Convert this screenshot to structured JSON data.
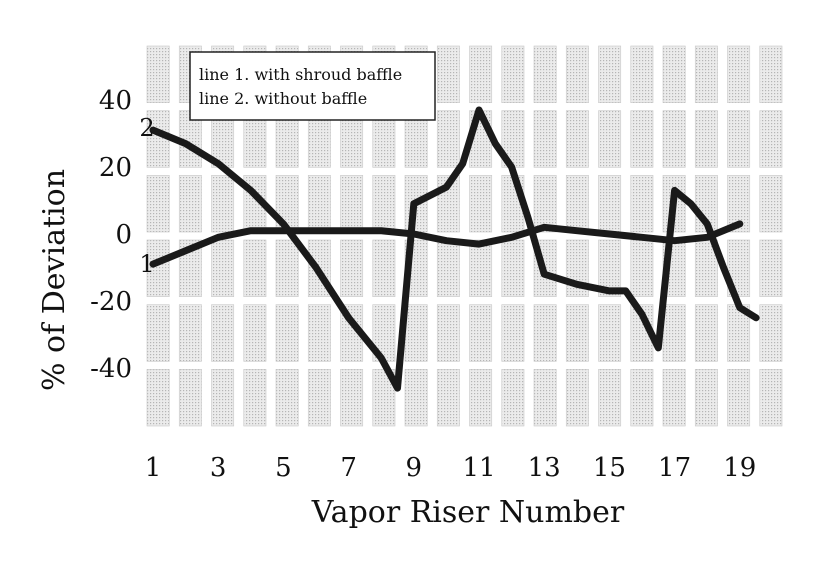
{
  "chart_data": {
    "type": "line",
    "title": "",
    "xlabel": "Vapor Riser Number",
    "ylabel": "% of Deviation",
    "xlim": [
      1,
      20
    ],
    "ylim": [
      -60,
      60
    ],
    "x_ticks": [
      1,
      3,
      5,
      7,
      9,
      11,
      13,
      15,
      17,
      19
    ],
    "y_ticks": [
      40,
      20,
      0,
      -20,
      -40
    ],
    "x_tick_labels": [
      "1",
      "3",
      "5",
      "7",
      "9",
      "11",
      "13",
      "15",
      "17",
      "19"
    ],
    "y_tick_labels": [
      "40",
      "20",
      "0",
      "-20",
      "-40"
    ],
    "grid": true,
    "legend_placement": "top-left",
    "legend": [
      "line 1. with shroud baffle",
      "line 2. without baffle"
    ],
    "series": [
      {
        "name": "1",
        "color": "#1a1a1a",
        "x": [
          1,
          2,
          3,
          4,
          5,
          6,
          7,
          8,
          9,
          10,
          11,
          12,
          13,
          14,
          15,
          16,
          17,
          18,
          19
        ],
        "y": [
          -9,
          -5,
          -1,
          1,
          1,
          1,
          1,
          1,
          0,
          -2,
          -3,
          -1,
          2,
          1,
          0,
          -1,
          -2,
          -1,
          3
        ]
      },
      {
        "name": "2",
        "color": "#1a1a1a",
        "x": [
          1,
          2,
          3,
          4,
          5,
          6,
          7,
          8,
          8.5,
          9,
          10,
          10.5,
          11,
          11.5,
          12,
          12.5,
          13,
          14,
          15,
          15.5,
          16,
          16.5,
          17,
          17.5,
          18,
          18.5,
          19,
          19.5
        ],
        "y": [
          31,
          27,
          21,
          13,
          3,
          -10,
          -25,
          -37,
          -46,
          9,
          14,
          21,
          37,
          27,
          20,
          5,
          -12,
          -15,
          -17,
          -17,
          -24,
          -34,
          13,
          9,
          3,
          -10,
          -22,
          -25
        ]
      }
    ]
  }
}
